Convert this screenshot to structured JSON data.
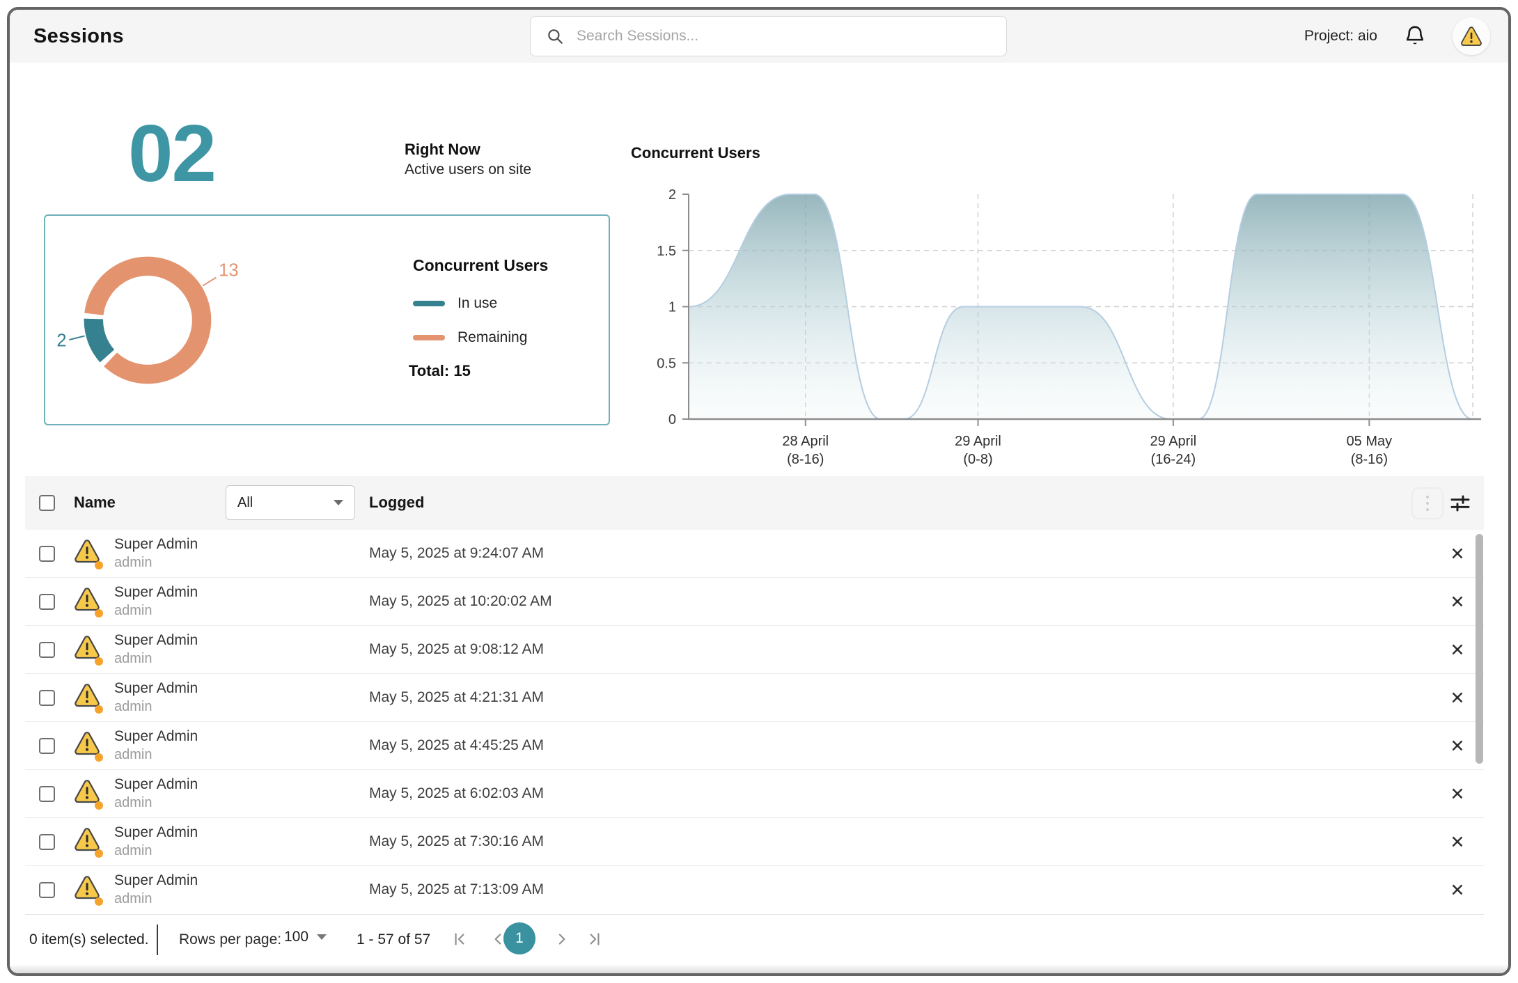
{
  "header": {
    "title": "Sessions",
    "search_placeholder": "Search Sessions...",
    "project_label": "Project: aio"
  },
  "stats": {
    "active_count": "02",
    "right_now_title": "Right Now",
    "right_now_subtitle": "Active users on site"
  },
  "chart_data": [
    {
      "type": "pie",
      "title": "Concurrent Users",
      "labels": [
        "In use",
        "Remaining"
      ],
      "values": [
        2,
        13
      ],
      "colors": [
        "#35818f",
        "#e3946f"
      ],
      "total": 15,
      "total_label": "Total: 15",
      "legend_position": "right",
      "donut": true
    },
    {
      "type": "area",
      "title": "Concurrent Users",
      "xlabel": "",
      "ylabel": "",
      "ylim": [
        0,
        2
      ],
      "yticks": [
        0,
        0.5,
        1,
        1.5,
        2
      ],
      "xtick_labels": [
        [
          "28 April",
          "(8-16)"
        ],
        [
          "29 April",
          "(0-8)"
        ],
        [
          "29 April",
          "(16-24)"
        ],
        [
          "05 May",
          "(8-16)"
        ]
      ],
      "xtick_pos": [
        0.149,
        0.369,
        0.618,
        0.868
      ],
      "grid": "dashed",
      "legend_position": "none",
      "series": [
        {
          "name": "Concurrent Users",
          "points": [
            {
              "x": 0.0,
              "y": 1
            },
            {
              "x": 0.13,
              "y": 2
            },
            {
              "x": 0.16,
              "y": 2
            },
            {
              "x": 0.245,
              "y": 0
            },
            {
              "x": 0.275,
              "y": 0
            },
            {
              "x": 0.35,
              "y": 1
            },
            {
              "x": 0.5,
              "y": 1
            },
            {
              "x": 0.615,
              "y": 0
            },
            {
              "x": 0.65,
              "y": 0
            },
            {
              "x": 0.725,
              "y": 2
            },
            {
              "x": 0.91,
              "y": 2
            },
            {
              "x": 1.0,
              "y": 0
            }
          ]
        }
      ]
    }
  ],
  "table": {
    "columns": {
      "name": "Name",
      "logged": "Logged"
    },
    "filter_value": "All",
    "rows": [
      {
        "name": "Super Admin",
        "username": "admin",
        "logged": "May 5, 2025 at 9:24:07 AM"
      },
      {
        "name": "Super Admin",
        "username": "admin",
        "logged": "May 5, 2025 at 10:20:02 AM"
      },
      {
        "name": "Super Admin",
        "username": "admin",
        "logged": "May 5, 2025 at 9:08:12 AM"
      },
      {
        "name": "Super Admin",
        "username": "admin",
        "logged": "May 5, 2025 at 4:21:31 AM"
      },
      {
        "name": "Super Admin",
        "username": "admin",
        "logged": "May 5, 2025 at 4:45:25 AM"
      },
      {
        "name": "Super Admin",
        "username": "admin",
        "logged": "May 5, 2025 at 6:02:03 AM"
      },
      {
        "name": "Super Admin",
        "username": "admin",
        "logged": "May 5, 2025 at 7:30:16 AM"
      },
      {
        "name": "Super Admin",
        "username": "admin",
        "logged": "May 5, 2025 at 7:13:09 AM"
      }
    ]
  },
  "footer": {
    "selected_text": "0 item(s) selected.",
    "rows_per_page_label": "Rows per page:",
    "rows_per_page_value": "100",
    "range_text": "1 - 57 of 57",
    "current_page": "1"
  },
  "colors": {
    "accent_teal": "#3e96a4",
    "donut_in_use": "#35818f",
    "donut_remaining": "#e3946f",
    "warning_yellow": "#f7c94b",
    "warning_dot_orange": "#f5a32a",
    "header_bg": "#f5f5f6",
    "area_fill_top": "#7da5ad",
    "area_line": "#b5cde1",
    "grid_dash": "#cfcfcf",
    "axis": "#8d8d8d"
  }
}
